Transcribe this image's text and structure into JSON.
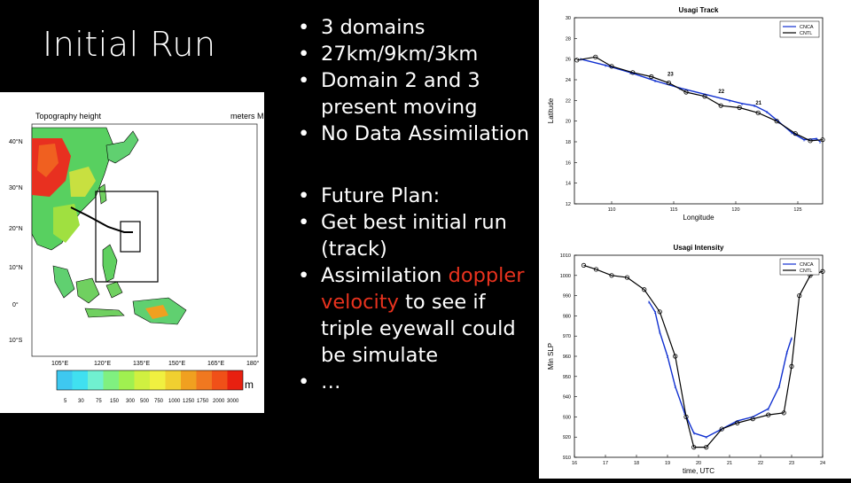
{
  "slide": {
    "title": "Initial Run",
    "bullets_1": {
      "b1": "3 domains",
      "b2": "27km/9km/3km",
      "b3_line1": "Domain 2 and 3",
      "b3_line2": "present moving",
      "b4": "No Data Assimilation"
    },
    "bullets_2": {
      "b1": "Future Plan:",
      "b2_line1": "Get best initial run",
      "b2_line2": "(track)",
      "b3_pre": "Assimilation ",
      "b3_red1": "doppler",
      "b3_red2": "velocity",
      "b3_post": " to see if",
      "b3_line3": "triple eyewall could",
      "b3_line4": "be simulate",
      "b4": "…"
    }
  },
  "map": {
    "title": "Topography height",
    "units": "meters MSL",
    "lat_labels": [
      "40°N",
      "30°N",
      "20°N",
      "10°N",
      "0°",
      "10°S"
    ],
    "lon_labels": [
      "105°E",
      "120°E",
      "135°E",
      "150°E",
      "165°E",
      "180°"
    ],
    "colorbar_labels": [
      "5",
      "30",
      "75",
      "150",
      "300",
      "500",
      "750",
      "1000",
      "1250",
      "1750",
      "2000",
      "3000"
    ],
    "colorbar_unit": "m",
    "colorbar_colors": [
      "#3ec8f0",
      "#40e0f0",
      "#70f0d0",
      "#80f080",
      "#a0f050",
      "#d0f040",
      "#f0f040",
      "#f0d030",
      "#f0a020",
      "#f07820",
      "#f05018",
      "#e82010"
    ]
  },
  "chart_data": [
    {
      "type": "line",
      "title": "Usagi Track",
      "xlabel": "Longitude",
      "ylabel": "Latitude",
      "xlim": [
        107,
        127
      ],
      "ylim": [
        12,
        30
      ],
      "x_ticks": [
        "110",
        "115",
        "120",
        "125",
        "130"
      ],
      "y_ticks": [
        "12",
        "14",
        "16",
        "18",
        "20",
        "22",
        "24",
        "26",
        "28",
        "30"
      ],
      "legend": "top-right",
      "annotations": [
        {
          "text": "23",
          "x": 114.5,
          "y": 24.4
        },
        {
          "text": "22",
          "x": 118.6,
          "y": 22.7
        },
        {
          "text": "21",
          "x": 121.6,
          "y": 21.6
        }
      ],
      "series": [
        {
          "name": "CNCA",
          "color": "#1030d0",
          "x": [
            107.5,
            109.5,
            111.5,
            113.5,
            115.5,
            117.5,
            119.5,
            120.5,
            121.5,
            122.5,
            123.5,
            124.5,
            125.5,
            126.5,
            126.8
          ],
          "y": [
            26.0,
            25.4,
            24.7,
            23.9,
            23.2,
            22.6,
            22.0,
            21.7,
            21.5,
            20.9,
            19.9,
            18.9,
            18.2,
            18.3,
            18.0
          ]
        },
        {
          "name": "CNTL",
          "color": "#000000",
          "x": [
            107.2,
            108.7,
            110.0,
            111.7,
            113.2,
            114.6,
            116.0,
            117.5,
            118.8,
            120.3,
            121.8,
            123.3,
            124.8,
            126.0,
            127.0
          ],
          "y": [
            25.9,
            26.2,
            25.3,
            24.7,
            24.3,
            23.7,
            22.8,
            22.4,
            21.5,
            21.3,
            20.8,
            20.0,
            18.8,
            18.1,
            18.2
          ]
        }
      ]
    },
    {
      "type": "line",
      "title": "Usagi Intensity",
      "xlabel": "time, UTC",
      "ylabel": "Min SLP",
      "xlim": [
        16,
        24
      ],
      "ylim": [
        910,
        1010
      ],
      "x_ticks": [
        "16",
        "17",
        "18",
        "19",
        "20",
        "21",
        "22",
        "23",
        "24"
      ],
      "y_ticks": [
        "910",
        "920",
        "930",
        "940",
        "950",
        "960",
        "970",
        "980",
        "990",
        "1000",
        "1010"
      ],
      "legend": "top-right",
      "series": [
        {
          "name": "CNCA",
          "color": "#1030d0",
          "x": [
            18.4,
            18.6,
            18.75,
            19.0,
            19.25,
            19.55,
            19.85,
            20.25,
            20.75,
            21.25,
            21.75,
            22.25,
            22.6,
            22.85,
            23.0
          ],
          "y": [
            987,
            982,
            972,
            960,
            945,
            932,
            922,
            920,
            924,
            928,
            930,
            934,
            945,
            962,
            969
          ]
        },
        {
          "name": "CNTL",
          "color": "#000000",
          "x": [
            16.3,
            16.7,
            17.2,
            17.7,
            18.25,
            18.75,
            19.25,
            19.6,
            19.85,
            20.25,
            20.75,
            21.25,
            21.75,
            22.25,
            22.75,
            23.0,
            23.25,
            23.6,
            24.0
          ],
          "y": [
            1005,
            1003,
            1000,
            999,
            993,
            982,
            960,
            930,
            915,
            915,
            924,
            927,
            929,
            931,
            932,
            955,
            990,
            1000,
            1002
          ]
        }
      ]
    }
  ]
}
